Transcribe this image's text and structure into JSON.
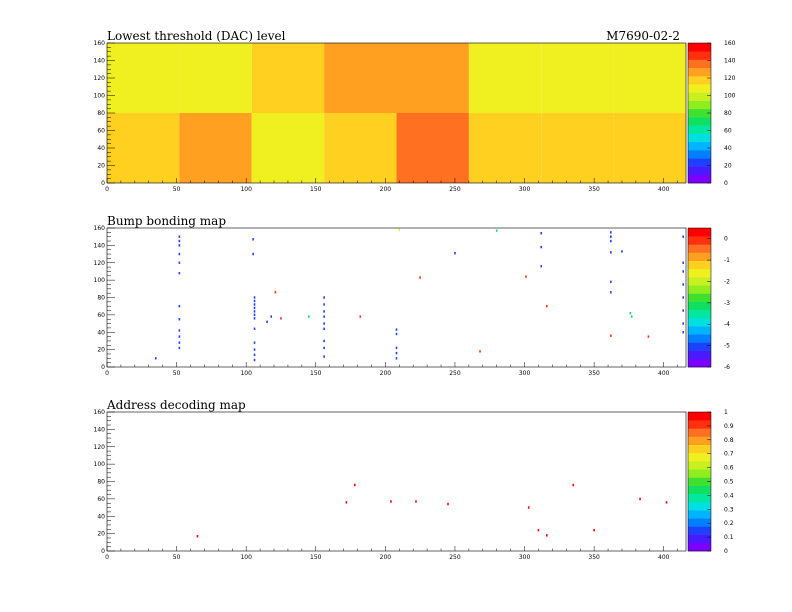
{
  "header": {
    "module_id": "M7690-02-2"
  },
  "chart_data": [
    {
      "type": "heatmap",
      "title": "Lowest threshold (DAC) level",
      "xlim": [
        0,
        416
      ],
      "ylim": [
        0,
        160
      ],
      "xticks": [
        0,
        50,
        100,
        150,
        200,
        250,
        300,
        350,
        400
      ],
      "yticks": [
        0,
        20,
        40,
        60,
        80,
        100,
        120,
        140,
        160
      ],
      "zlim": [
        0,
        160
      ],
      "zticks": [
        0,
        20,
        40,
        60,
        80,
        100,
        120,
        140,
        160
      ],
      "grid": false,
      "legend": "right",
      "cells": [
        {
          "x0": 0,
          "x1": 52,
          "y0": 80,
          "y1": 160,
          "z": 112
        },
        {
          "x0": 52,
          "x1": 104,
          "y0": 80,
          "y1": 160,
          "z": 106
        },
        {
          "x0": 104,
          "x1": 156,
          "y0": 80,
          "y1": 160,
          "z": 122
        },
        {
          "x0": 156,
          "x1": 208,
          "y0": 80,
          "y1": 160,
          "z": 126
        },
        {
          "x0": 208,
          "x1": 260,
          "y0": 80,
          "y1": 160,
          "z": 126
        },
        {
          "x0": 260,
          "x1": 312,
          "y0": 80,
          "y1": 160,
          "z": 110
        },
        {
          "x0": 312,
          "x1": 364,
          "y0": 80,
          "y1": 160,
          "z": 110
        },
        {
          "x0": 364,
          "x1": 416,
          "y0": 80,
          "y1": 160,
          "z": 104
        },
        {
          "x0": 0,
          "x1": 52,
          "y0": 0,
          "y1": 80,
          "z": 115
        },
        {
          "x0": 52,
          "x1": 104,
          "y0": 0,
          "y1": 80,
          "z": 126
        },
        {
          "x0": 104,
          "x1": 156,
          "y0": 0,
          "y1": 80,
          "z": 104
        },
        {
          "x0": 156,
          "x1": 208,
          "y0": 0,
          "y1": 80,
          "z": 120
        },
        {
          "x0": 208,
          "x1": 260,
          "y0": 0,
          "y1": 80,
          "z": 140
        },
        {
          "x0": 260,
          "x1": 312,
          "y0": 0,
          "y1": 80,
          "z": 120
        },
        {
          "x0": 312,
          "x1": 364,
          "y0": 0,
          "y1": 80,
          "z": 120
        },
        {
          "x0": 364,
          "x1": 416,
          "y0": 0,
          "y1": 80,
          "z": 120
        }
      ]
    },
    {
      "type": "scatter",
      "title": "Bump bonding map",
      "xlim": [
        0,
        416
      ],
      "ylim": [
        0,
        160
      ],
      "xticks": [
        0,
        50,
        100,
        150,
        200,
        250,
        300,
        350,
        400
      ],
      "yticks": [
        0,
        20,
        40,
        60,
        80,
        100,
        120,
        140,
        160
      ],
      "zlim": [
        -6,
        0.5
      ],
      "zticks": [
        0,
        -1,
        -2,
        -3,
        -4,
        -5,
        -6
      ],
      "grid": false,
      "legend": "right",
      "points": [
        {
          "x": 52,
          "y": 150,
          "z": -5
        },
        {
          "x": 52,
          "y": 145,
          "z": -5
        },
        {
          "x": 52,
          "y": 140,
          "z": -5
        },
        {
          "x": 52,
          "y": 130,
          "z": -5
        },
        {
          "x": 52,
          "y": 120,
          "z": -5
        },
        {
          "x": 52,
          "y": 108,
          "z": -5
        },
        {
          "x": 52,
          "y": 70,
          "z": -5
        },
        {
          "x": 52,
          "y": 55,
          "z": -5
        },
        {
          "x": 52,
          "y": 42,
          "z": -5
        },
        {
          "x": 52,
          "y": 35,
          "z": -5
        },
        {
          "x": 52,
          "y": 28,
          "z": -5
        },
        {
          "x": 52,
          "y": 22,
          "z": -5
        },
        {
          "x": 35,
          "y": 10,
          "z": -5
        },
        {
          "x": 105,
          "y": 147,
          "z": -5
        },
        {
          "x": 105,
          "y": 130,
          "z": -5
        },
        {
          "x": 106,
          "y": 80,
          "z": -5
        },
        {
          "x": 106,
          "y": 76,
          "z": -5
        },
        {
          "x": 106,
          "y": 72,
          "z": -5
        },
        {
          "x": 106,
          "y": 68,
          "z": -5
        },
        {
          "x": 106,
          "y": 64,
          "z": -5
        },
        {
          "x": 106,
          "y": 60,
          "z": -5
        },
        {
          "x": 106,
          "y": 56,
          "z": -5
        },
        {
          "x": 106,
          "y": 44,
          "z": -5
        },
        {
          "x": 106,
          "y": 28,
          "z": -5
        },
        {
          "x": 106,
          "y": 20,
          "z": -5
        },
        {
          "x": 106,
          "y": 14,
          "z": -5
        },
        {
          "x": 106,
          "y": 8,
          "z": -5
        },
        {
          "x": 115,
          "y": 52,
          "z": -5
        },
        {
          "x": 118,
          "y": 58,
          "z": -5
        },
        {
          "x": 121,
          "y": 86,
          "z": 0
        },
        {
          "x": 125,
          "y": 56,
          "z": 0
        },
        {
          "x": 145,
          "y": 58,
          "z": -3
        },
        {
          "x": 156,
          "y": 80,
          "z": -5
        },
        {
          "x": 156,
          "y": 72,
          "z": -5
        },
        {
          "x": 156,
          "y": 64,
          "z": -5
        },
        {
          "x": 156,
          "y": 58,
          "z": -5
        },
        {
          "x": 156,
          "y": 50,
          "z": -5
        },
        {
          "x": 156,
          "y": 44,
          "z": -5
        },
        {
          "x": 156,
          "y": 30,
          "z": -5
        },
        {
          "x": 156,
          "y": 22,
          "z": -5
        },
        {
          "x": 156,
          "y": 12,
          "z": -5
        },
        {
          "x": 182,
          "y": 58,
          "z": 0
        },
        {
          "x": 208,
          "y": 43,
          "z": -5
        },
        {
          "x": 208,
          "y": 38,
          "z": -5
        },
        {
          "x": 208,
          "y": 22,
          "z": -5
        },
        {
          "x": 208,
          "y": 16,
          "z": -5
        },
        {
          "x": 208,
          "y": 10,
          "z": -5
        },
        {
          "x": 210,
          "y": 158,
          "z": -1.5
        },
        {
          "x": 225,
          "y": 103,
          "z": 0
        },
        {
          "x": 250,
          "y": 131,
          "z": -5
        },
        {
          "x": 268,
          "y": 18,
          "z": 0
        },
        {
          "x": 280,
          "y": 157,
          "z": -3
        },
        {
          "x": 301,
          "y": 104,
          "z": 0
        },
        {
          "x": 312,
          "y": 154,
          "z": -5
        },
        {
          "x": 312,
          "y": 138,
          "z": -5
        },
        {
          "x": 312,
          "y": 116,
          "z": -5
        },
        {
          "x": 316,
          "y": 70,
          "z": 0
        },
        {
          "x": 362,
          "y": 155,
          "z": -5
        },
        {
          "x": 362,
          "y": 150,
          "z": -5
        },
        {
          "x": 362,
          "y": 145,
          "z": -5
        },
        {
          "x": 362,
          "y": 132,
          "z": -5
        },
        {
          "x": 362,
          "y": 98,
          "z": -5
        },
        {
          "x": 362,
          "y": 86,
          "z": -5
        },
        {
          "x": 362,
          "y": 36,
          "z": 0
        },
        {
          "x": 370,
          "y": 133,
          "z": -5
        },
        {
          "x": 376,
          "y": 62,
          "z": -3
        },
        {
          "x": 377,
          "y": 58,
          "z": -3
        },
        {
          "x": 389,
          "y": 35,
          "z": 0
        },
        {
          "x": 414,
          "y": 150,
          "z": -5
        },
        {
          "x": 414,
          "y": 120,
          "z": -5
        },
        {
          "x": 414,
          "y": 110,
          "z": -5
        },
        {
          "x": 414,
          "y": 95,
          "z": -5
        },
        {
          "x": 414,
          "y": 80,
          "z": -5
        },
        {
          "x": 414,
          "y": 65,
          "z": -5
        },
        {
          "x": 414,
          "y": 50,
          "z": -5
        },
        {
          "x": 414,
          "y": 40,
          "z": -5
        }
      ]
    },
    {
      "type": "scatter",
      "title": "Address decoding map",
      "xlim": [
        0,
        416
      ],
      "ylim": [
        0,
        160
      ],
      "xticks": [
        0,
        50,
        100,
        150,
        200,
        250,
        300,
        350,
        400
      ],
      "yticks": [
        0,
        20,
        40,
        60,
        80,
        100,
        120,
        140,
        160
      ],
      "zlim": [
        0,
        1
      ],
      "zticks": [
        0,
        0.1,
        0.2,
        0.3,
        0.4,
        0.5,
        0.6,
        0.7,
        0.8,
        0.9,
        1
      ],
      "grid": false,
      "legend": "right",
      "points": [
        {
          "x": 65,
          "y": 17,
          "z": 1
        },
        {
          "x": 172,
          "y": 56,
          "z": 1
        },
        {
          "x": 178,
          "y": 76,
          "z": 1
        },
        {
          "x": 204,
          "y": 57,
          "z": 1
        },
        {
          "x": 222,
          "y": 57,
          "z": 1
        },
        {
          "x": 245,
          "y": 54,
          "z": 1
        },
        {
          "x": 303,
          "y": 50,
          "z": 1
        },
        {
          "x": 310,
          "y": 24,
          "z": 1
        },
        {
          "x": 316,
          "y": 18,
          "z": 1
        },
        {
          "x": 335,
          "y": 76,
          "z": 1
        },
        {
          "x": 350,
          "y": 24,
          "z": 1
        },
        {
          "x": 383,
          "y": 60,
          "z": 1
        },
        {
          "x": 402,
          "y": 56,
          "z": 1
        }
      ]
    }
  ]
}
